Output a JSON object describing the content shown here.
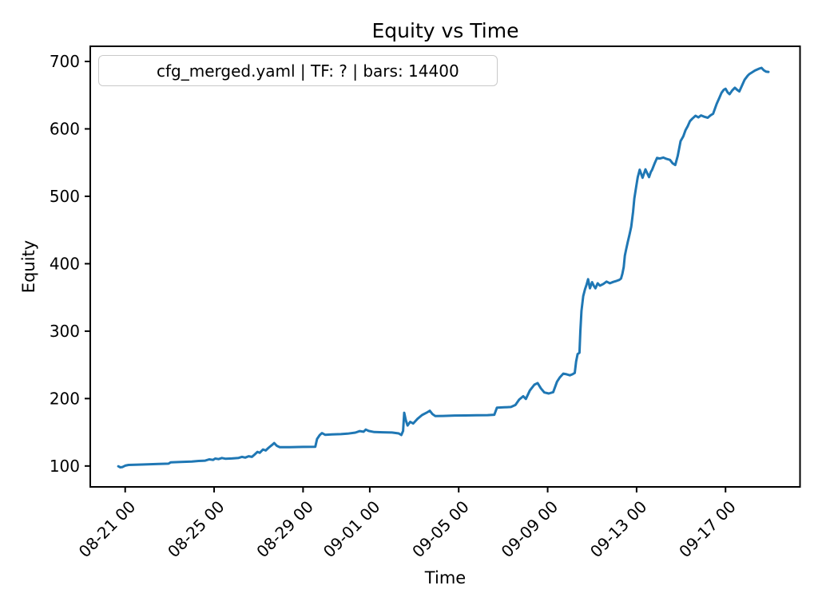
{
  "chart_data": {
    "type": "line",
    "title": "Equity vs Time",
    "xlabel": "Time",
    "ylabel": "Equity",
    "grid": false,
    "legend_position": "upper left",
    "legend_border_color": "#c9c9c9",
    "x_axis": {
      "tick_labels": [
        "08-21 00",
        "08-25 00",
        "08-29 00",
        "09-01 00",
        "09-05 00",
        "09-09 00",
        "09-13 00",
        "09-17 00"
      ],
      "tick_days": [
        0,
        4,
        8,
        11,
        15,
        19,
        23,
        27
      ],
      "xlim_days": [
        -1.57,
        30.35
      ],
      "tick_rotation_deg": 45
    },
    "y_axis": {
      "ticks": [
        100,
        200,
        300,
        400,
        500,
        600,
        700
      ],
      "ylim": [
        69,
        722.5
      ]
    },
    "series": [
      {
        "name": "cfg_merged.yaml | TF: ? | bars: 14400",
        "color": "#1f77b4",
        "points": [
          [
            -0.31,
            99.5
          ],
          [
            -0.22,
            98
          ],
          [
            -0.12,
            98.5
          ],
          [
            0,
            100.5
          ],
          [
            0.15,
            101.5
          ],
          [
            0.6,
            102
          ],
          [
            1,
            102.5
          ],
          [
            1.5,
            103
          ],
          [
            1.95,
            103.5
          ],
          [
            2.05,
            105.5
          ],
          [
            2.5,
            106
          ],
          [
            3,
            106.5
          ],
          [
            3.3,
            107.5
          ],
          [
            3.6,
            108
          ],
          [
            3.78,
            109.8
          ],
          [
            3.95,
            109
          ],
          [
            4.05,
            111
          ],
          [
            4.2,
            110.2
          ],
          [
            4.35,
            111.8
          ],
          [
            4.5,
            110.8
          ],
          [
            4.8,
            111.2
          ],
          [
            5.1,
            112
          ],
          [
            5.25,
            113.5
          ],
          [
            5.4,
            112.5
          ],
          [
            5.55,
            114.5
          ],
          [
            5.7,
            113.5
          ],
          [
            5.82,
            117
          ],
          [
            5.95,
            121
          ],
          [
            6.05,
            119.5
          ],
          [
            6.2,
            124.5
          ],
          [
            6.32,
            123
          ],
          [
            6.45,
            127
          ],
          [
            6.6,
            131
          ],
          [
            6.7,
            134
          ],
          [
            6.82,
            130
          ],
          [
            6.95,
            128
          ],
          [
            7.4,
            128
          ],
          [
            8,
            128.3
          ],
          [
            8.55,
            128.5
          ],
          [
            8.63,
            140
          ],
          [
            8.75,
            146
          ],
          [
            8.85,
            148.8
          ],
          [
            9,
            146.2
          ],
          [
            9.3,
            146.8
          ],
          [
            9.7,
            147.3
          ],
          [
            10,
            148
          ],
          [
            10.35,
            149.5
          ],
          [
            10.55,
            151.8
          ],
          [
            10.72,
            150.8
          ],
          [
            10.82,
            154
          ],
          [
            10.95,
            152
          ],
          [
            11.2,
            150.3
          ],
          [
            11.6,
            150
          ],
          [
            12,
            149.6
          ],
          [
            12.3,
            148.3
          ],
          [
            12.42,
            146
          ],
          [
            12.5,
            152
          ],
          [
            12.55,
            179
          ],
          [
            12.62,
            168
          ],
          [
            12.7,
            160
          ],
          [
            12.82,
            165.5
          ],
          [
            12.95,
            163
          ],
          [
            13.15,
            170
          ],
          [
            13.35,
            175.5
          ],
          [
            13.55,
            179
          ],
          [
            13.7,
            182
          ],
          [
            13.82,
            177
          ],
          [
            13.95,
            174
          ],
          [
            14.3,
            174.3
          ],
          [
            14.8,
            174.8
          ],
          [
            15.3,
            175
          ],
          [
            15.8,
            175.2
          ],
          [
            16.3,
            175.4
          ],
          [
            16.6,
            176
          ],
          [
            16.72,
            186.5
          ],
          [
            17.05,
            187
          ],
          [
            17.35,
            187.5
          ],
          [
            17.55,
            190.5
          ],
          [
            17.72,
            198.5
          ],
          [
            17.9,
            203.5
          ],
          [
            18.02,
            199.5
          ],
          [
            18.2,
            212
          ],
          [
            18.4,
            220.5
          ],
          [
            18.55,
            223
          ],
          [
            18.7,
            215
          ],
          [
            18.85,
            209
          ],
          [
            19.05,
            207.5
          ],
          [
            19.25,
            209.5
          ],
          [
            19.42,
            225
          ],
          [
            19.55,
            231.5
          ],
          [
            19.7,
            237
          ],
          [
            19.85,
            236
          ],
          [
            20,
            234.5
          ],
          [
            20.12,
            236
          ],
          [
            20.22,
            238
          ],
          [
            20.28,
            255
          ],
          [
            20.35,
            266
          ],
          [
            20.43,
            268
          ],
          [
            20.47,
            300
          ],
          [
            20.52,
            330
          ],
          [
            20.6,
            352
          ],
          [
            20.68,
            362
          ],
          [
            20.75,
            369
          ],
          [
            20.82,
            377
          ],
          [
            20.9,
            363.5
          ],
          [
            21,
            372.5
          ],
          [
            21.08,
            367
          ],
          [
            21.15,
            363.5
          ],
          [
            21.25,
            371
          ],
          [
            21.35,
            367.5
          ],
          [
            21.5,
            370
          ],
          [
            21.65,
            373.5
          ],
          [
            21.8,
            371
          ],
          [
            21.95,
            373
          ],
          [
            22.1,
            374.5
          ],
          [
            22.22,
            376
          ],
          [
            22.3,
            378
          ],
          [
            22.36,
            385
          ],
          [
            22.42,
            395
          ],
          [
            22.47,
            412
          ],
          [
            22.52,
            420
          ],
          [
            22.6,
            432
          ],
          [
            22.68,
            443
          ],
          [
            22.76,
            455
          ],
          [
            22.84,
            477
          ],
          [
            22.9,
            497
          ],
          [
            22.97,
            512
          ],
          [
            23.05,
            528
          ],
          [
            23.14,
            539.5
          ],
          [
            23.27,
            527.5
          ],
          [
            23.4,
            540
          ],
          [
            23.48,
            534
          ],
          [
            23.56,
            528.5
          ],
          [
            23.64,
            536
          ],
          [
            23.7,
            539.5
          ],
          [
            23.8,
            548
          ],
          [
            23.92,
            557
          ],
          [
            24.05,
            556
          ],
          [
            24.2,
            557.5
          ],
          [
            24.35,
            555.5
          ],
          [
            24.5,
            554
          ],
          [
            24.62,
            549
          ],
          [
            24.74,
            546.5
          ],
          [
            24.85,
            560
          ],
          [
            24.98,
            582
          ],
          [
            25.1,
            589
          ],
          [
            25.2,
            598
          ],
          [
            25.3,
            604
          ],
          [
            25.4,
            611.5
          ],
          [
            25.5,
            615
          ],
          [
            25.65,
            619.5
          ],
          [
            25.78,
            617
          ],
          [
            25.9,
            620
          ],
          [
            26.05,
            618
          ],
          [
            26.2,
            616.5
          ],
          [
            26.32,
            620
          ],
          [
            26.44,
            622.5
          ],
          [
            26.6,
            637
          ],
          [
            26.72,
            646
          ],
          [
            26.82,
            653.5
          ],
          [
            26.92,
            658
          ],
          [
            27,
            659.5
          ],
          [
            27.1,
            654
          ],
          [
            27.18,
            651.5
          ],
          [
            27.3,
            657
          ],
          [
            27.42,
            661
          ],
          [
            27.52,
            658
          ],
          [
            27.62,
            655.5
          ],
          [
            27.75,
            665
          ],
          [
            27.86,
            673
          ],
          [
            28,
            679
          ],
          [
            28.08,
            681.5
          ],
          [
            28.2,
            684
          ],
          [
            28.32,
            686.5
          ],
          [
            28.42,
            688
          ],
          [
            28.52,
            689.5
          ],
          [
            28.62,
            690.5
          ],
          [
            28.72,
            687
          ],
          [
            28.82,
            685
          ],
          [
            28.93,
            684.5
          ]
        ]
      }
    ]
  }
}
